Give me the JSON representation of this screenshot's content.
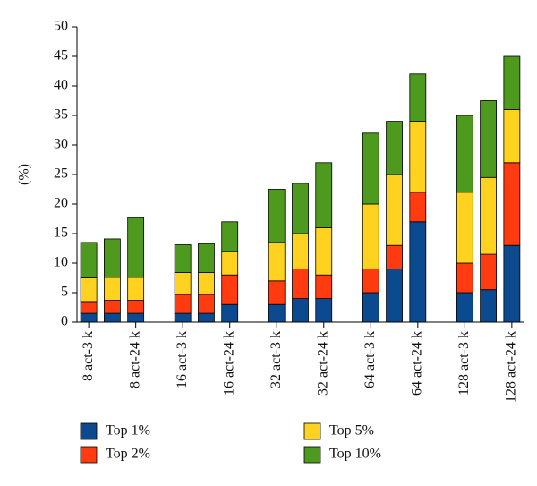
{
  "chart_data": {
    "type": "stacked_bar",
    "y_label": "(%)",
    "categories": [
      "8 act-3 k",
      null,
      "8 act-24 k",
      null,
      "16 act-3 k",
      null,
      "16 act-24 k",
      null,
      "32 act-3 k",
      null,
      "32 act-24 k",
      null,
      "64 act-3 k",
      null,
      "64 act-24 k",
      null,
      "128 act-3 k",
      null,
      "128 act-24 k"
    ],
    "series": [
      {
        "name": "Top 1%",
        "color": "#0b4a8f",
        "values": [
          1.5,
          1.5,
          1.5,
          null,
          1.5,
          1.5,
          3,
          null,
          3,
          4,
          4,
          null,
          5,
          9,
          17,
          null,
          5,
          5.5,
          13
        ]
      },
      {
        "name": "Top 2%",
        "color": "#ff3b0f",
        "values": [
          2,
          2.2,
          2.2,
          null,
          3.2,
          3.2,
          5,
          null,
          4,
          5,
          4,
          null,
          4,
          4,
          5,
          null,
          5,
          6,
          14
        ]
      },
      {
        "name": "Top 5%",
        "color": "#ffd21f",
        "values": [
          4,
          3.9,
          3.9,
          null,
          3.7,
          3.7,
          4,
          null,
          6.5,
          6,
          8,
          null,
          11,
          12,
          12,
          null,
          12,
          13,
          9
        ]
      },
      {
        "name": "Top 10%",
        "color": "#4e9a1f",
        "values": [
          6,
          6.5,
          10.1,
          null,
          4.7,
          4.9,
          5,
          null,
          9,
          8.5,
          11,
          null,
          12,
          9,
          8,
          null,
          13,
          13,
          9
        ]
      }
    ],
    "ylim": [
      0,
      50
    ],
    "yticks": [
      0,
      5,
      10,
      15,
      20,
      25,
      30,
      35,
      40,
      45,
      50
    ],
    "legend": "bottom"
  }
}
